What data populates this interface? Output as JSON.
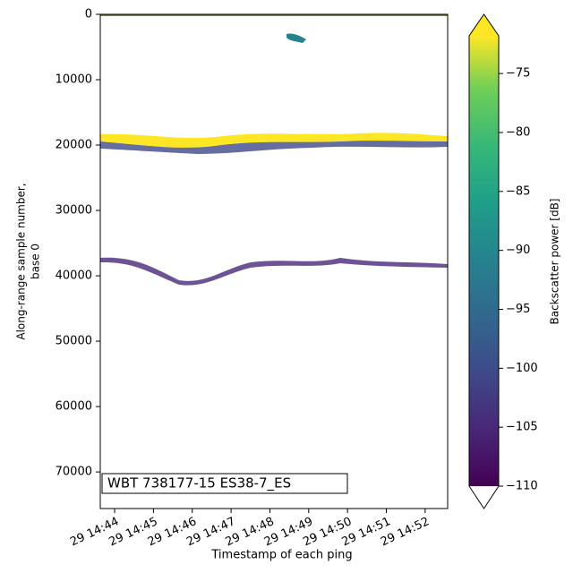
{
  "chart_data": {
    "type": "echogram",
    "xlabel": "Timestamp of each ping",
    "ylabel": [
      "Along-range sample number,",
      "base 0"
    ],
    "annotation": "WBT 738177-15 ES38-7_ES",
    "xlim": [
      883.63,
      892.58
    ],
    "xticks": [
      {
        "value": 884,
        "label": "29 14:44"
      },
      {
        "value": 885,
        "label": "29 14:45"
      },
      {
        "value": 886,
        "label": "29 14:46"
      },
      {
        "value": 887,
        "label": "29 14:47"
      },
      {
        "value": 888,
        "label": "29 14:48"
      },
      {
        "value": 889,
        "label": "29 14:49"
      },
      {
        "value": 890,
        "label": "29 14:50"
      },
      {
        "value": 891,
        "label": "29 14:51"
      },
      {
        "value": 892,
        "label": "29 14:52"
      }
    ],
    "ylim": [
      75600,
      0
    ],
    "yticks": [
      0,
      10000,
      20000,
      30000,
      40000,
      50000,
      60000,
      70000
    ],
    "colorbar": {
      "label": "Backscatter power [dB]",
      "colormap": "viridis",
      "clim": [
        -110,
        -71.8
      ],
      "ticks": [
        {
          "value": -110,
          "label": "−110"
        },
        {
          "value": -105,
          "label": "−105"
        },
        {
          "value": -100,
          "label": "−100"
        },
        {
          "value": -95,
          "label": "−95"
        },
        {
          "value": -90,
          "label": "−90"
        },
        {
          "value": -85,
          "label": "−85"
        },
        {
          "value": -80,
          "label": "−80"
        },
        {
          "value": -75,
          "label": "−75"
        }
      ]
    }
  }
}
